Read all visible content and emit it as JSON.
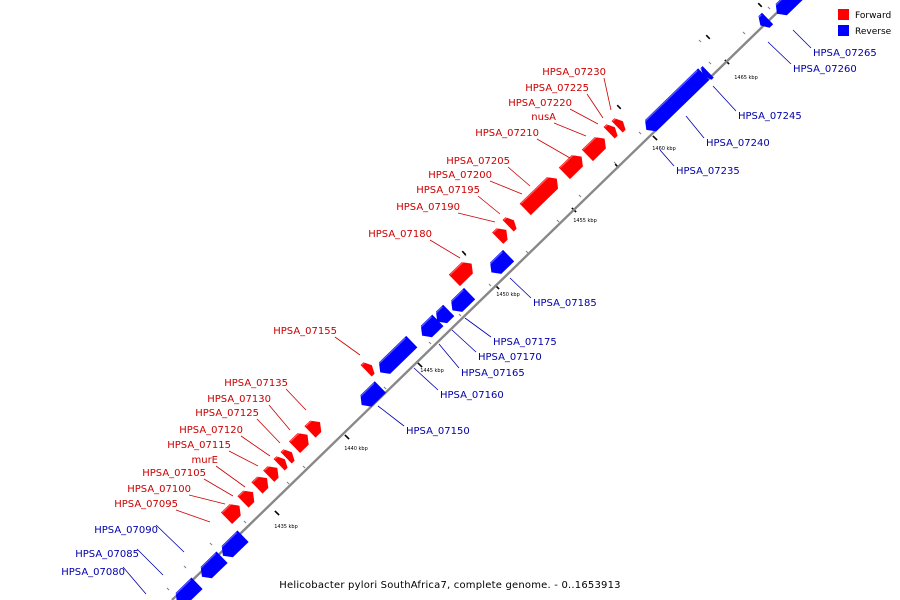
{
  "caption": "Helicobacter pylori SouthAfrica7, complete genome. - 0..1653913",
  "legend": {
    "forward": {
      "label": "Forward",
      "color": "#ff0000"
    },
    "reverse": {
      "label": "Reverse",
      "color": "#0000ff"
    }
  },
  "colors": {
    "forward_label": "#cc0000",
    "reverse_label": "#0000aa",
    "backbone": "#888888"
  },
  "scale_labels": [
    "1435 kbp",
    "1440 kbp",
    "1445 kbp",
    "1450 kbp",
    "1455 kbp",
    "1460 kbp",
    "1465 kbp"
  ],
  "forward_genes": [
    "HPSA_07230",
    "HPSA_07225",
    "HPSA_07220",
    "nusA",
    "HPSA_07210",
    "HPSA_07205",
    "HPSA_07200",
    "HPSA_07195",
    "HPSA_07190",
    "HPSA_07180",
    "HPSA_07155",
    "HPSA_07135",
    "HPSA_07130",
    "HPSA_07125",
    "HPSA_07120",
    "HPSA_07115",
    "murE",
    "HPSA_07105",
    "HPSA_07100",
    "HPSA_07095"
  ],
  "reverse_genes": [
    "HPSA_07265",
    "HPSA_07260",
    "HPSA_07245",
    "HPSA_07240",
    "HPSA_07235",
    "HPSA_07185",
    "HPSA_07175",
    "HPSA_07170",
    "HPSA_07165",
    "HPSA_07160",
    "HPSA_07150",
    "HPSA_07090",
    "HPSA_07085",
    "HPSA_07080"
  ]
}
